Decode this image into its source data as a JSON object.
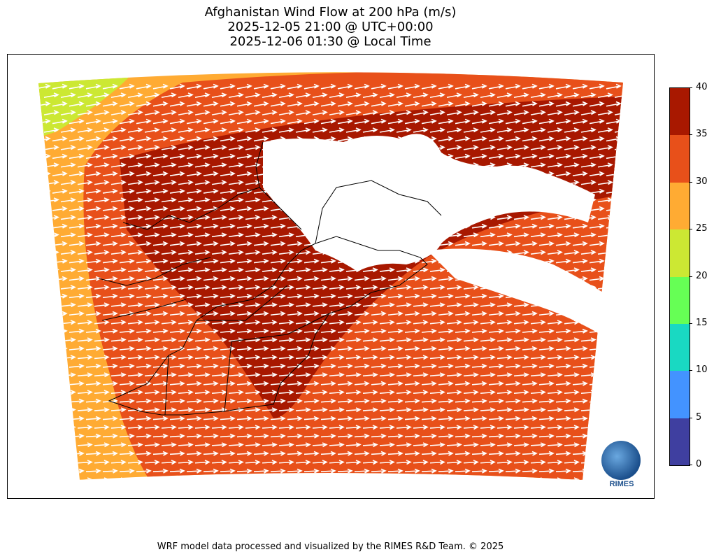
{
  "title": {
    "line1": "Afghanistan Wind Flow at 200 hPa (m/s)",
    "line2": "2025-12-05 21:00 @ UTC+00:00",
    "line3": "2025-12-06 01:30 @ Local Time"
  },
  "colorbar": {
    "min": 0,
    "max": 40,
    "ticks": [
      "0",
      "5",
      "10",
      "15",
      "20",
      "25",
      "30",
      "35",
      "40"
    ],
    "colors": [
      "#3f3fa0",
      "#4393ff",
      "#19d9c2",
      "#66ff55",
      "#cce833",
      "#ffab33",
      "#e8501a",
      "#a81800"
    ]
  },
  "map": {
    "fill_colors": {
      "outer_band": "#ffab33",
      "main": "#e8501a",
      "core": "#a81800",
      "corner": "#cce833"
    },
    "arrow_color": "#ffffff"
  },
  "logo": {
    "text": "RIMES"
  },
  "footer": {
    "text": "WRF model data processed and visualized by the RIMES R&D Team. © 2025"
  }
}
